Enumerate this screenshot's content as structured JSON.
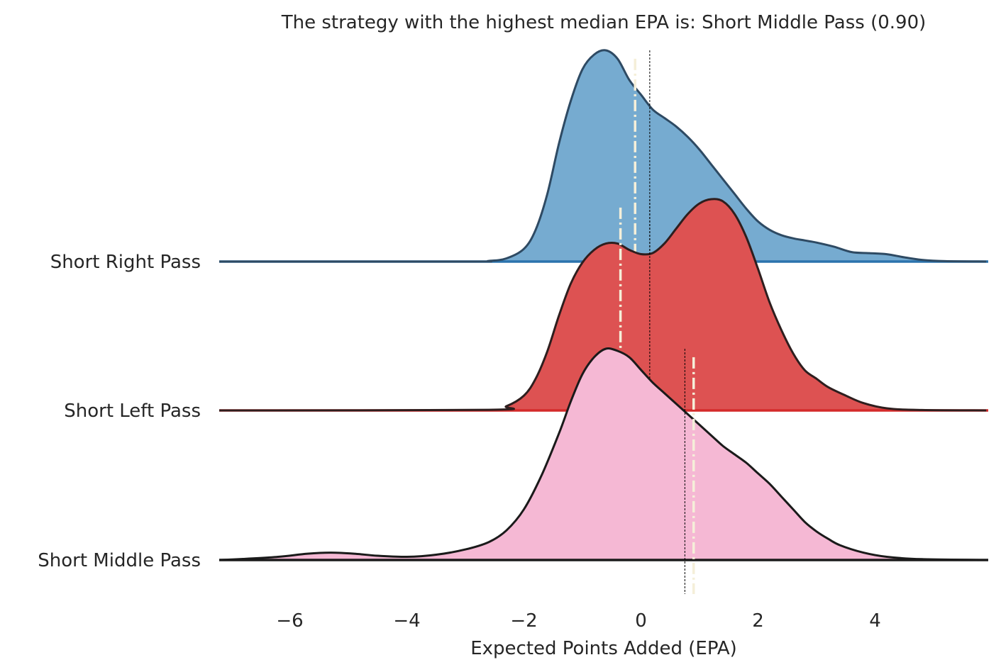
{
  "chart_data": {
    "type": "ridgeline",
    "title": "The strategy with the highest median EPA is: Short Middle Pass (0.90)",
    "xlabel": "Expected Points Added (EPA)",
    "ylabel": "",
    "xlim": [
      -7.3,
      5.9
    ],
    "xticks": [
      {
        "value": -6,
        "label": "−6"
      },
      {
        "value": -4,
        "label": "−4"
      },
      {
        "value": -2,
        "label": "−2"
      },
      {
        "value": 0,
        "label": "0"
      },
      {
        "value": 2,
        "label": "2"
      },
      {
        "value": 4,
        "label": "4"
      }
    ],
    "grid": false,
    "legend": "none",
    "series": [
      {
        "name": "Short Right Pass",
        "fill": "#76abd0",
        "baseline_color": "#2b73ad",
        "outline": "#2e4a63",
        "median": -0.1,
        "mean": 0.15,
        "density": [
          [
            -7.3,
            0
          ],
          [
            -3.0,
            0.0
          ],
          [
            -2.6,
            0.003
          ],
          [
            -2.3,
            0.015
          ],
          [
            -2.0,
            0.06
          ],
          [
            -1.8,
            0.15
          ],
          [
            -1.6,
            0.32
          ],
          [
            -1.4,
            0.56
          ],
          [
            -1.2,
            0.76
          ],
          [
            -1.0,
            0.91
          ],
          [
            -0.8,
            0.98
          ],
          [
            -0.6,
            1.0
          ],
          [
            -0.4,
            0.96
          ],
          [
            -0.2,
            0.86
          ],
          [
            0.0,
            0.79
          ],
          [
            0.2,
            0.72
          ],
          [
            0.4,
            0.68
          ],
          [
            0.6,
            0.64
          ],
          [
            0.8,
            0.59
          ],
          [
            1.0,
            0.53
          ],
          [
            1.2,
            0.46
          ],
          [
            1.4,
            0.39
          ],
          [
            1.6,
            0.32
          ],
          [
            1.8,
            0.25
          ],
          [
            2.0,
            0.19
          ],
          [
            2.2,
            0.15
          ],
          [
            2.4,
            0.125
          ],
          [
            2.6,
            0.11
          ],
          [
            2.8,
            0.1
          ],
          [
            3.0,
            0.09
          ],
          [
            3.3,
            0.07
          ],
          [
            3.6,
            0.045
          ],
          [
            3.9,
            0.04
          ],
          [
            4.2,
            0.035
          ],
          [
            4.5,
            0.02
          ],
          [
            4.8,
            0.008
          ],
          [
            5.2,
            0.002
          ],
          [
            5.9,
            0
          ]
        ]
      },
      {
        "name": "Short Left Pass",
        "fill": "#dd5252",
        "baseline_color": "#d42a2a",
        "outline": "#2e1e1e",
        "median": -0.35,
        "mean": 0.15,
        "density": [
          [
            -7.3,
            0
          ],
          [
            -2.6,
            0.003
          ],
          [
            -2.3,
            0.02
          ],
          [
            -2.0,
            0.07
          ],
          [
            -1.8,
            0.15
          ],
          [
            -1.6,
            0.28
          ],
          [
            -1.4,
            0.45
          ],
          [
            -1.2,
            0.6
          ],
          [
            -1.0,
            0.7
          ],
          [
            -0.8,
            0.76
          ],
          [
            -0.6,
            0.79
          ],
          [
            -0.4,
            0.79
          ],
          [
            -0.2,
            0.76
          ],
          [
            0.0,
            0.74
          ],
          [
            0.2,
            0.745
          ],
          [
            0.4,
            0.79
          ],
          [
            0.6,
            0.86
          ],
          [
            0.8,
            0.93
          ],
          [
            1.0,
            0.98
          ],
          [
            1.2,
            1.0
          ],
          [
            1.4,
            0.99
          ],
          [
            1.6,
            0.93
          ],
          [
            1.8,
            0.82
          ],
          [
            2.0,
            0.67
          ],
          [
            2.2,
            0.51
          ],
          [
            2.4,
            0.38
          ],
          [
            2.6,
            0.27
          ],
          [
            2.8,
            0.19
          ],
          [
            3.0,
            0.15
          ],
          [
            3.2,
            0.11
          ],
          [
            3.5,
            0.07
          ],
          [
            3.8,
            0.035
          ],
          [
            4.2,
            0.01
          ],
          [
            4.8,
            0.002
          ],
          [
            5.9,
            0
          ]
        ]
      },
      {
        "name": "Short Middle Pass",
        "fill": "#f5b8d4",
        "baseline_color": "#1a1a1a",
        "outline": "#1a1a1a",
        "median": 0.9,
        "mean": 0.75,
        "density": [
          [
            -7.3,
            0
          ],
          [
            -6.8,
            0.005
          ],
          [
            -6.2,
            0.015
          ],
          [
            -5.7,
            0.03
          ],
          [
            -5.3,
            0.035
          ],
          [
            -4.9,
            0.03
          ],
          [
            -4.5,
            0.02
          ],
          [
            -4.0,
            0.015
          ],
          [
            -3.5,
            0.025
          ],
          [
            -3.0,
            0.05
          ],
          [
            -2.6,
            0.085
          ],
          [
            -2.3,
            0.14
          ],
          [
            -2.0,
            0.24
          ],
          [
            -1.7,
            0.4
          ],
          [
            -1.4,
            0.6
          ],
          [
            -1.2,
            0.75
          ],
          [
            -1.0,
            0.88
          ],
          [
            -0.8,
            0.96
          ],
          [
            -0.6,
            1.0
          ],
          [
            -0.4,
            0.99
          ],
          [
            -0.2,
            0.96
          ],
          [
            0.0,
            0.9
          ],
          [
            0.2,
            0.84
          ],
          [
            0.4,
            0.79
          ],
          [
            0.6,
            0.74
          ],
          [
            0.8,
            0.69
          ],
          [
            1.0,
            0.64
          ],
          [
            1.2,
            0.59
          ],
          [
            1.4,
            0.54
          ],
          [
            1.6,
            0.5
          ],
          [
            1.8,
            0.46
          ],
          [
            2.0,
            0.41
          ],
          [
            2.2,
            0.36
          ],
          [
            2.4,
            0.3
          ],
          [
            2.6,
            0.24
          ],
          [
            2.8,
            0.18
          ],
          [
            3.0,
            0.135
          ],
          [
            3.2,
            0.1
          ],
          [
            3.4,
            0.07
          ],
          [
            3.8,
            0.035
          ],
          [
            4.2,
            0.015
          ],
          [
            4.8,
            0.004
          ],
          [
            5.9,
            0
          ]
        ]
      }
    ]
  }
}
